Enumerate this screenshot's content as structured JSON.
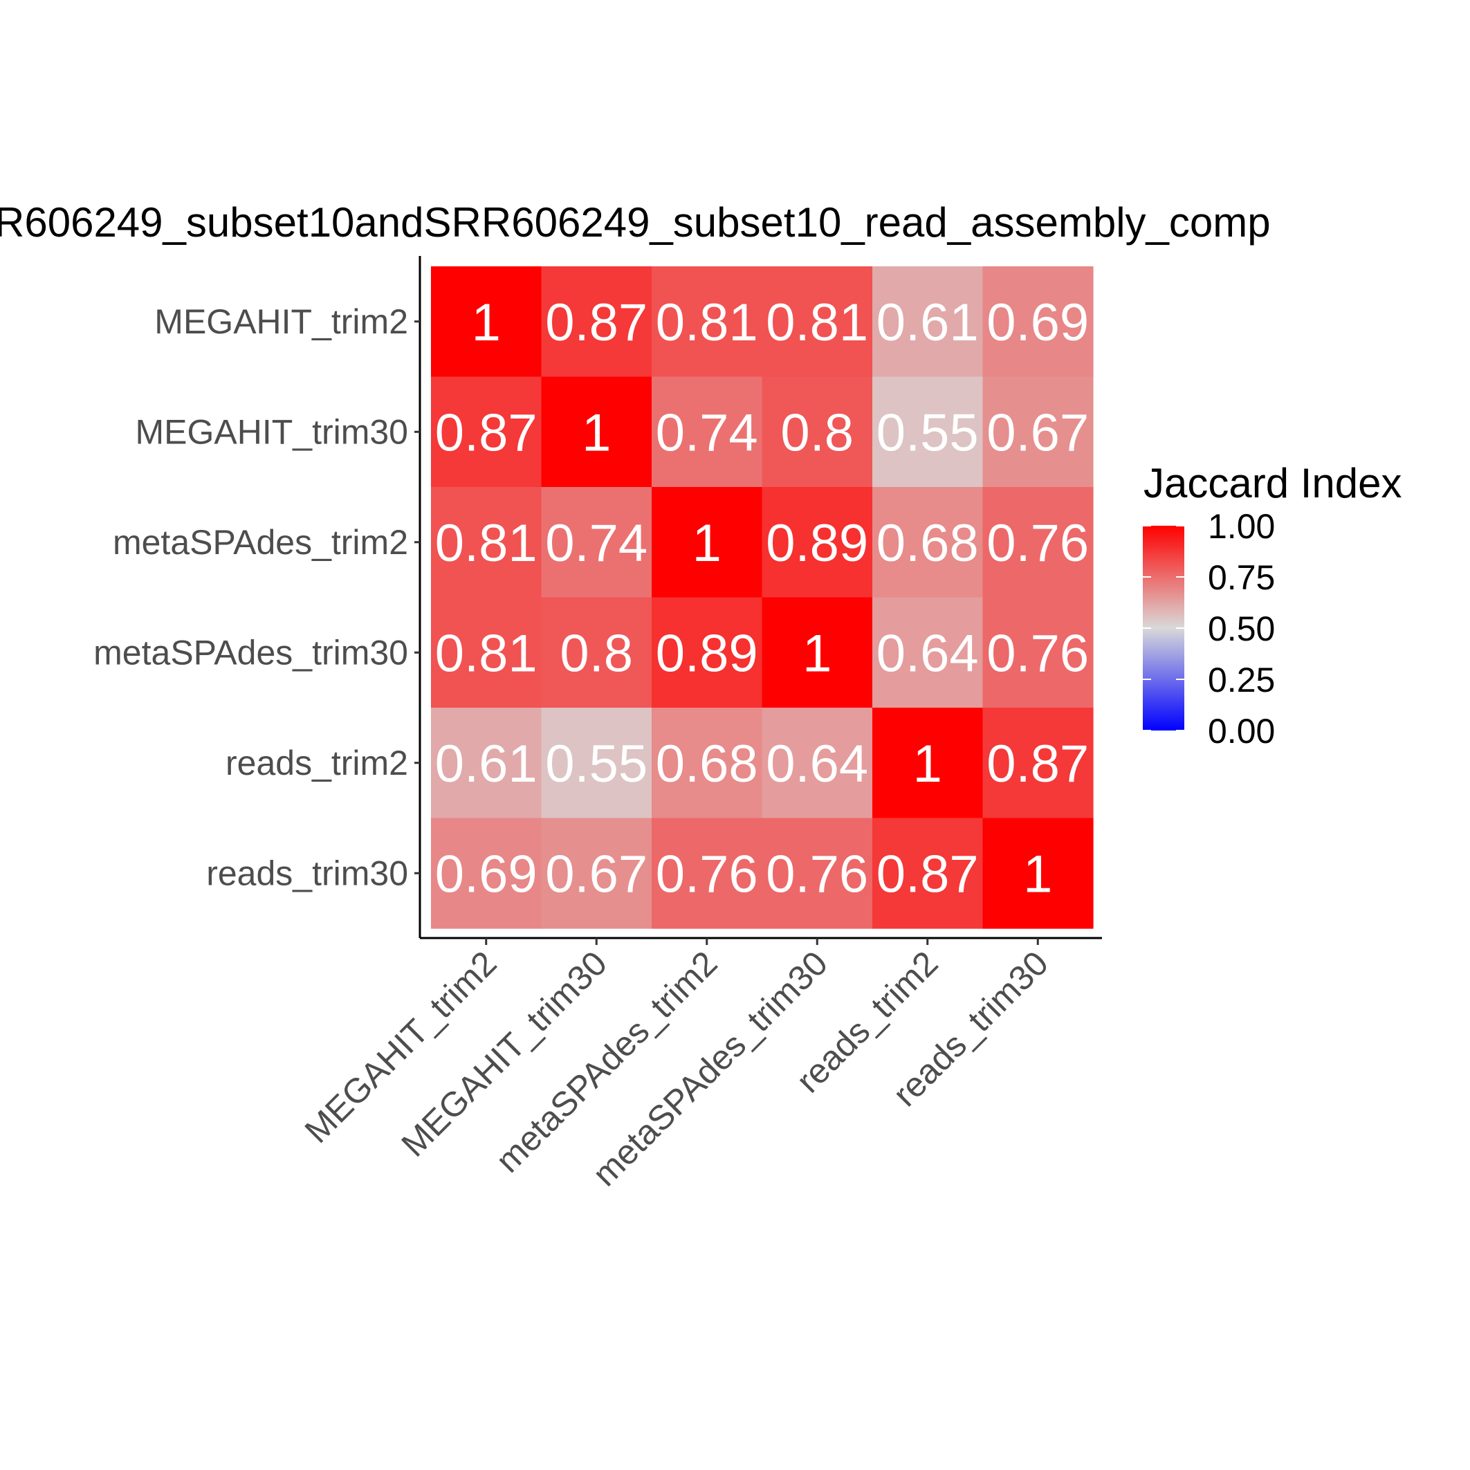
{
  "chart_data": {
    "type": "heatmap",
    "title": "R606249_subset10andSRR606249_subset10_read_assembly_comp",
    "x_categories": [
      "MEGAHIT_trim2",
      "MEGAHIT_trim30",
      "metaSPAdes_trim2",
      "metaSPAdes_trim30",
      "reads_trim2",
      "reads_trim30"
    ],
    "y_categories": [
      "MEGAHIT_trim2",
      "MEGAHIT_trim30",
      "metaSPAdes_trim2",
      "metaSPAdes_trim30",
      "reads_trim2",
      "reads_trim30"
    ],
    "values": [
      [
        1,
        0.87,
        0.81,
        0.81,
        0.61,
        0.69
      ],
      [
        0.87,
        1,
        0.74,
        0.8,
        0.55,
        0.67
      ],
      [
        0.81,
        0.74,
        1,
        0.89,
        0.68,
        0.76
      ],
      [
        0.81,
        0.8,
        0.89,
        1,
        0.64,
        0.76
      ],
      [
        0.61,
        0.55,
        0.68,
        0.64,
        1,
        0.87
      ],
      [
        0.69,
        0.67,
        0.76,
        0.76,
        0.87,
        1
      ]
    ],
    "cell_labels": [
      [
        "1",
        "0.87",
        "0.81",
        "0.81",
        "0.61",
        "0.69"
      ],
      [
        "0.87",
        "1",
        "0.74",
        "0.8",
        "0.55",
        "0.67"
      ],
      [
        "0.81",
        "0.74",
        "1",
        "0.89",
        "0.68",
        "0.76"
      ],
      [
        "0.81",
        "0.8",
        "0.89",
        "1",
        "0.64",
        "0.76"
      ],
      [
        "0.61",
        "0.55",
        "0.68",
        "0.64",
        "1",
        "0.87"
      ],
      [
        "0.69",
        "0.67",
        "0.76",
        "0.76",
        "0.87",
        "1"
      ]
    ],
    "legend": {
      "title": "Jaccard Index",
      "placement": "right",
      "range": [
        0,
        1
      ],
      "ticks": [
        1.0,
        0.75,
        0.5,
        0.25,
        0.0
      ],
      "tick_labels": [
        "1.00",
        "0.75",
        "0.50",
        "0.25",
        "0.00"
      ]
    },
    "color_scale": {
      "low": "#0000ff",
      "mid": "#d9d9d9",
      "high": "#ff0000",
      "midpoint": 0.5
    },
    "grid": false
  }
}
